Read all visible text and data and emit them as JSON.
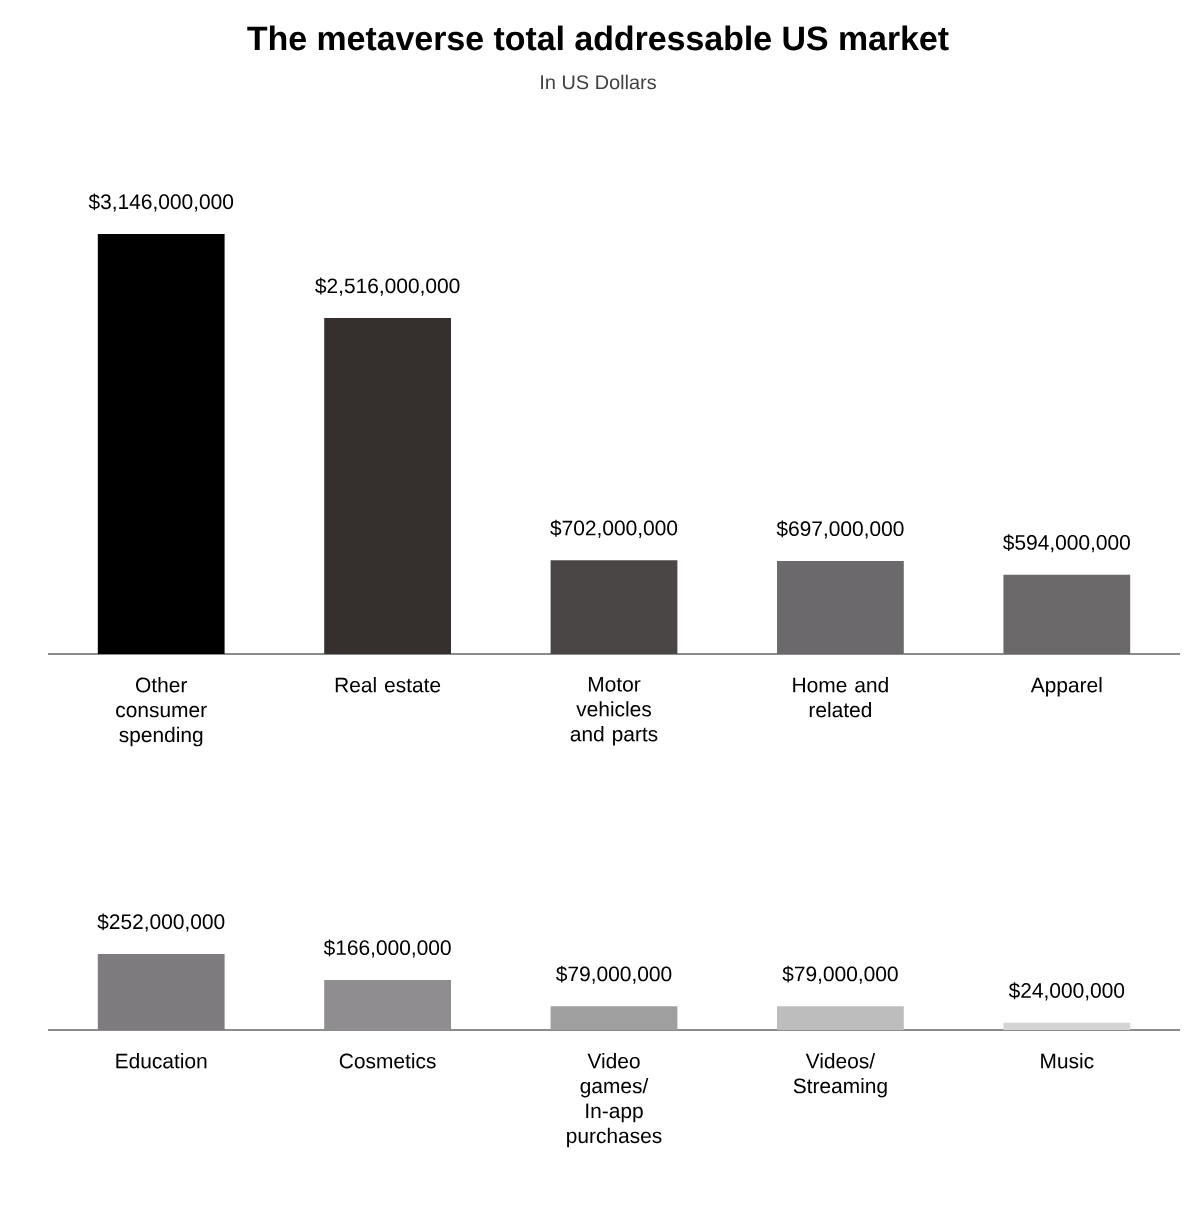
{
  "chart_data": [
    {
      "type": "bar",
      "title": "The metaverse total addressable US market",
      "subtitle": "In US Dollars",
      "categories": [
        "Other consumer spending",
        "Real estate",
        "Motor vehicles and parts",
        "Home and related",
        "Apparel"
      ],
      "values": [
        3146000000,
        2516000000,
        702000000,
        697000000,
        594000000
      ],
      "value_labels": [
        "$3,146,000,000",
        "$2,516,000,000",
        "$702,000,000",
        "$697,000,000",
        "$594,000,000"
      ],
      "colors": [
        "#000000",
        "#35302d",
        "#4a4646",
        "#6b696b",
        "#6b686a"
      ]
    },
    {
      "type": "bar",
      "categories": [
        "Education",
        "Cosmetics",
        "Video games/ In-app purchases",
        "Videos/ Streaming",
        "Music"
      ],
      "values": [
        252000000,
        166000000,
        79000000,
        79000000,
        24000000
      ],
      "value_labels": [
        "$252,000,000",
        "$166,000,000",
        "$79,000,000",
        "$79,000,000",
        "$24,000,000"
      ],
      "colors": [
        "#7d7b7d",
        "#8f8d8f",
        "#a09fa0",
        "#bdbdbd",
        "#d4d4d4"
      ]
    }
  ]
}
